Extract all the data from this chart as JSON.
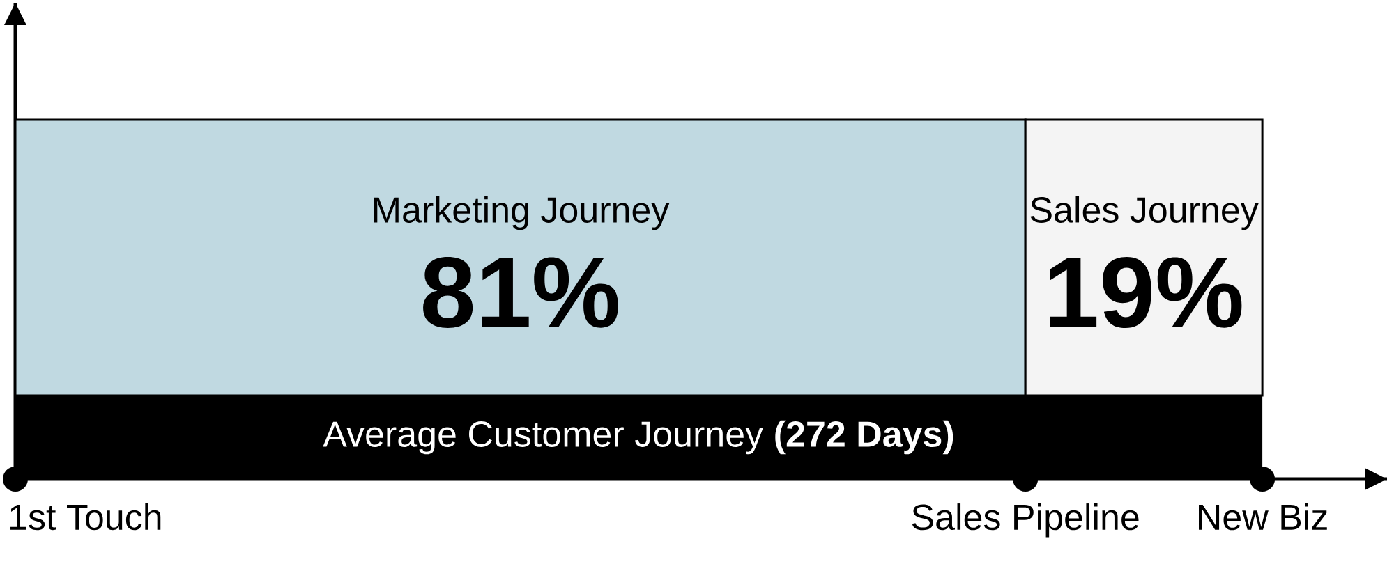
{
  "chart_data": {
    "type": "bar",
    "orientation": "horizontal",
    "stacked": true,
    "categories": [
      null
    ],
    "series": [
      {
        "name": "Marketing Journey",
        "color": "#c0d9e1",
        "values": [
          81
        ],
        "value_labels": [
          "81%"
        ]
      },
      {
        "name": "Sales Journey",
        "color": "#f4f4f4",
        "values": [
          19
        ],
        "value_labels": [
          "19%"
        ]
      }
    ],
    "annotations": [
      "Average Customer Journey **(272 Days)**",
      "1st Touch",
      "Sales Pipeline",
      "New Biz"
    ]
  }
}
